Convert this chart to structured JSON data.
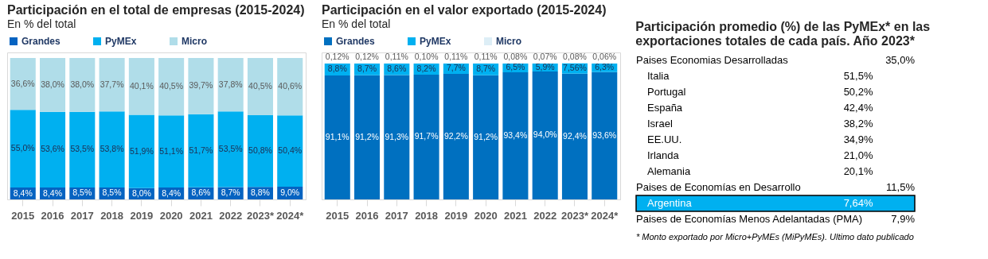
{
  "chart_data": [
    {
      "type": "bar",
      "title": "Participación en el total de empresas (2015-2024)",
      "subtitle": "En % del total",
      "stacked": true,
      "legend": "top",
      "grid": false,
      "tick_labels": "x",
      "ylim": [
        0,
        104
      ],
      "categories": [
        "2015",
        "2016",
        "2017",
        "2018",
        "2019",
        "2020",
        "2021",
        "2022",
        "2023*",
        "2024*"
      ],
      "series": [
        {
          "name": "Grandes",
          "color": "#0563c1",
          "values": [
            8.4,
            8.4,
            8.5,
            8.5,
            8.0,
            8.4,
            8.6,
            8.7,
            8.8,
            9.0
          ],
          "value_labels": [
            "8,4%",
            "8,4%",
            "8,5%",
            "8,5%",
            "8,0%",
            "8,4%",
            "8,6%",
            "8,7%",
            "8,8%",
            "9,0%"
          ]
        },
        {
          "name": "PyMEx",
          "color": "#00b0f0",
          "values": [
            55.0,
            53.6,
            53.5,
            53.8,
            51.9,
            51.1,
            51.7,
            53.5,
            50.8,
            50.4
          ],
          "value_labels": [
            "55,0%",
            "53,6%",
            "53,5%",
            "53,8%",
            "51,9%",
            "51,1%",
            "51,7%",
            "53,5%",
            "50,8%",
            "50,4%"
          ]
        },
        {
          "name": "Micro",
          "color": "#b0dde9",
          "values": [
            36.6,
            38.0,
            38.0,
            37.7,
            40.1,
            40.5,
            39.7,
            37.8,
            40.5,
            40.6
          ],
          "value_labels": [
            "36,6%",
            "38,0%",
            "38,0%",
            "37,7%",
            "40,1%",
            "40,5%",
            "39,7%",
            "37,8%",
            "40,5%",
            "40,6%"
          ]
        }
      ]
    },
    {
      "type": "bar",
      "title": "Participación en el valor exportado (2015-2024)",
      "subtitle": "En % del total",
      "stacked": true,
      "legend": "top",
      "grid": false,
      "tick_labels": "x",
      "ylim": [
        0,
        108
      ],
      "categories": [
        "2015",
        "2016",
        "2017",
        "2018",
        "2019",
        "2020",
        "2021",
        "2022",
        "2023*",
        "2024*"
      ],
      "series": [
        {
          "name": "Grandes",
          "color": "#0070c0",
          "values": [
            91.1,
            91.2,
            91.3,
            91.7,
            92.2,
            91.2,
            93.4,
            94.0,
            92.4,
            93.6
          ],
          "value_labels": [
            "91,1%",
            "91,2%",
            "91,3%",
            "91,7%",
            "92,2%",
            "91,2%",
            "93,4%",
            "94,0%",
            "92,4%",
            "93,6%"
          ]
        },
        {
          "name": "PyMEx",
          "color": "#00b0f0",
          "values": [
            8.8,
            8.7,
            8.6,
            8.2,
            7.7,
            8.7,
            6.5,
            5.9,
            7.56,
            6.3
          ],
          "value_labels": [
            "8,8%",
            "8,7%",
            "8,6%",
            "8,2%",
            "7,7%",
            "8,7%",
            "6,5%",
            "5,9%",
            "7,56%",
            "6,3%"
          ]
        },
        {
          "name": "Micro",
          "color": "#ddeef6",
          "values": [
            0.12,
            0.12,
            0.11,
            0.1,
            0.11,
            0.11,
            0.08,
            0.07,
            0.08,
            0.06
          ],
          "value_labels": [
            "0,12%",
            "0,12%",
            "0,11%",
            "0,10%",
            "0,11%",
            "0,11%",
            "0,08%",
            "0,07%",
            "0,08%",
            "0,06%"
          ]
        }
      ]
    },
    {
      "type": "other",
      "title": "Participación promedio (%) de las PyMEx* en las exportaciones totales de cada país. Año 2023*",
      "categories": [
        "Paises Economias Desarrolladas",
        "Italia",
        "Portugal",
        "España",
        "Israel",
        "EE.UU.",
        "Irlanda",
        "Alemania",
        "Paises de Economías en Desarrollo",
        "Argentina",
        "Paises de Economías Menos Adelantadas (PMA)"
      ],
      "value_labels": [
        "35,0%",
        "51,5%",
        "50,2%",
        "42,4%",
        "38,2%",
        "34,9%",
        "21,0%",
        "20,1%",
        "11,5%",
        "7,64%",
        "7,9%"
      ],
      "colors": [
        null,
        null,
        null,
        null,
        null,
        null,
        null,
        null,
        null,
        "#00b0f0",
        null
      ],
      "annotations": [
        "* Monto exportado por Micro+PyMEs (MiPyMEs). Ultimo dato publicado"
      ]
    }
  ]
}
